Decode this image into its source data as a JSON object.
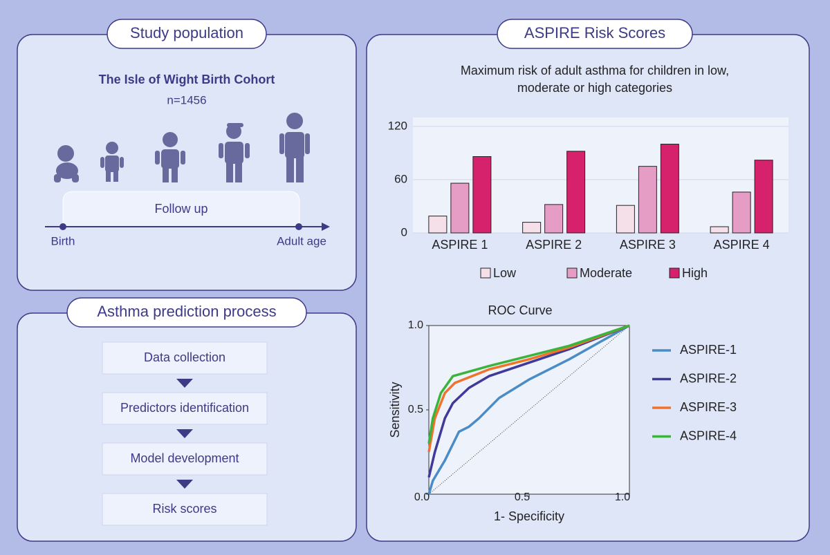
{
  "study_population": {
    "title": "Study population",
    "cohort": "The Isle of Wight Birth Cohort",
    "n": "n=1456",
    "follow_up": "Follow up",
    "start": "Birth",
    "end": "Adult age"
  },
  "prediction_process": {
    "title": "Asthma prediction process",
    "steps": [
      "Data collection",
      "Predictors identification",
      "Model development",
      "Risk scores"
    ]
  },
  "aspire": {
    "title": "ASPIRE Risk Scores"
  },
  "chart_data": [
    {
      "type": "bar",
      "title": "Maximum risk of adult asthma for children in low, moderate or high categories",
      "categories": [
        "ASPIRE 1",
        "ASPIRE 2",
        "ASPIRE 3",
        "ASPIRE 4"
      ],
      "series": [
        {
          "name": "Low",
          "color": "#f5dfe8",
          "values": [
            19,
            12,
            31,
            7
          ]
        },
        {
          "name": "Moderate",
          "color": "#e59dc5",
          "values": [
            56,
            32,
            75,
            46
          ]
        },
        {
          "name": "High",
          "color": "#d6226d",
          "values": [
            86,
            92,
            100,
            82
          ]
        }
      ],
      "ylim": [
        0,
        130
      ],
      "yticks": [
        0,
        60,
        120
      ],
      "grid": true,
      "legend": "bottom"
    },
    {
      "type": "line",
      "title": "ROC Curve",
      "xlabel": "1- Specificity",
      "ylabel": "Sensitivity",
      "xlim": [
        0,
        1
      ],
      "ylim": [
        0,
        1
      ],
      "xticks": [
        {
          "value": 0,
          "label": "0.0"
        },
        0.5,
        {
          "value": 1,
          "label": "1.0"
        }
      ],
      "yticks": [
        {
          "value": 0,
          "label": "0.0"
        },
        0.5,
        {
          "value": 1,
          "label": "1.0"
        }
      ],
      "legend": "right",
      "series": [
        {
          "name": "ASPIRE-1",
          "color": "#4a8cc6",
          "x": [
            0,
            0.02,
            0.08,
            0.15,
            0.2,
            0.25,
            0.35,
            0.5,
            0.7,
            0.85,
            1
          ],
          "values": [
            0,
            0.08,
            0.2,
            0.37,
            0.4,
            0.45,
            0.57,
            0.68,
            0.8,
            0.9,
            1
          ]
        },
        {
          "name": "ASPIRE-2",
          "color": "#3f3a9a",
          "x": [
            0,
            0.03,
            0.08,
            0.12,
            0.2,
            0.3,
            0.5,
            0.7,
            1
          ],
          "values": [
            0.1,
            0.25,
            0.45,
            0.54,
            0.63,
            0.7,
            0.78,
            0.86,
            1
          ]
        },
        {
          "name": "ASPIRE-3",
          "color": "#f0732b",
          "x": [
            0,
            0.03,
            0.08,
            0.13,
            0.3,
            0.5,
            0.7,
            1
          ],
          "values": [
            0.25,
            0.45,
            0.6,
            0.66,
            0.74,
            0.8,
            0.87,
            1
          ]
        },
        {
          "name": "ASPIRE-4",
          "color": "#3cb43c",
          "x": [
            0,
            0.02,
            0.06,
            0.12,
            0.3,
            0.5,
            0.7,
            1
          ],
          "values": [
            0.3,
            0.45,
            0.6,
            0.7,
            0.76,
            0.82,
            0.88,
            1
          ]
        }
      ]
    }
  ]
}
